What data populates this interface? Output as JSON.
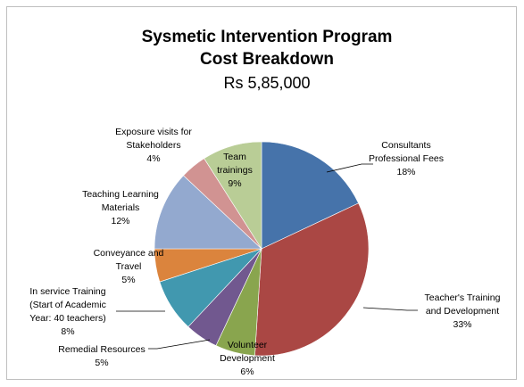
{
  "chart_data": {
    "type": "pie",
    "title": "Sysmetic Intervention Program",
    "title_line2": "Cost Breakdown",
    "subtitle": "Rs 5,85,000",
    "slices": [
      {
        "label": "Consultants Professional Fees",
        "lines": [
          "Consultants",
          "Professional Fees"
        ],
        "pct_label": "18%",
        "value": 18,
        "color": "#4673aa"
      },
      {
        "label": "Teacher's Training and Development",
        "lines": [
          "Teacher's Training",
          "and Development"
        ],
        "pct_label": "33%",
        "value": 33,
        "color": "#aa4744"
      },
      {
        "label": "Volunteer Development",
        "lines": [
          "Volunteer",
          "Development"
        ],
        "pct_label": "6%",
        "value": 6,
        "color": "#89a54e"
      },
      {
        "label": "Remedial Resources",
        "lines": [
          "Remedial Resources"
        ],
        "pct_label": "5%",
        "value": 5,
        "color": "#71588f"
      },
      {
        "label": "In service Training (Start of Academic Year: 40 teachers)",
        "lines": [
          "In service Training",
          "(Start of Academic",
          "Year: 40 teachers)"
        ],
        "pct_label": "8%",
        "value": 8,
        "color": "#4198af"
      },
      {
        "label": "Conveyance and Travel",
        "lines": [
          "Conveyance and",
          "Travel"
        ],
        "pct_label": "5%",
        "value": 5,
        "color": "#db843d"
      },
      {
        "label": "Teaching Learning Materials",
        "lines": [
          "Teaching Learning",
          "Materials"
        ],
        "pct_label": "12%",
        "value": 12,
        "color": "#93a9cf"
      },
      {
        "label": "Exposure visits for Stakeholders",
        "lines": [
          "Exposure visits for",
          "Stakeholders"
        ],
        "pct_label": "4%",
        "value": 4,
        "color": "#d19392"
      },
      {
        "label": "Team trainings",
        "lines": [
          "Team",
          "trainings"
        ],
        "pct_label": "9%",
        "value": 9,
        "color": "#b9cd96"
      }
    ]
  }
}
